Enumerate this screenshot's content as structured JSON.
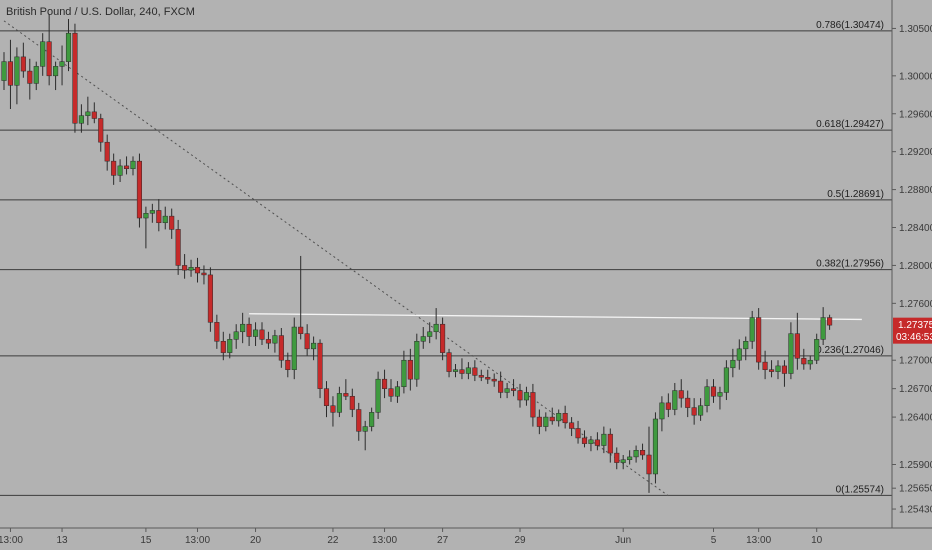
{
  "chart_data": {
    "type": "candlestick",
    "title": "British Pound / U.S. Dollar, 240, FXCM",
    "y_range": [
      1.2523,
      1.308
    ],
    "y_ticks": [
      "1.30500",
      "1.30000",
      "1.29600",
      "1.29200",
      "1.28800",
      "1.28400",
      "1.28000",
      "1.27600",
      "1.27000",
      "1.26700",
      "1.26400",
      "1.25900",
      "1.25650",
      "1.25430"
    ],
    "x_ticks": [
      {
        "label": "13:00",
        "i": 1
      },
      {
        "label": "13",
        "i": 9
      },
      {
        "label": "15",
        "i": 22
      },
      {
        "label": "13:00",
        "i": 30
      },
      {
        "label": "20",
        "i": 39
      },
      {
        "label": "22",
        "i": 51
      },
      {
        "label": "13:00",
        "i": 59
      },
      {
        "label": "27",
        "i": 68
      },
      {
        "label": "29",
        "i": 80
      },
      {
        "label": "Jun",
        "i": 96
      },
      {
        "label": "5",
        "i": 110
      },
      {
        "label": "13:00",
        "i": 117
      },
      {
        "label": "10",
        "i": 126
      }
    ],
    "fib_levels": [
      {
        "label": "0.786(1.30474)",
        "value": 1.30474
      },
      {
        "label": "0.618(1.29427)",
        "value": 1.29427
      },
      {
        "label": "0.5(1.28691)",
        "value": 1.28691
      },
      {
        "label": "0.382(1.27956)",
        "value": 1.27956
      },
      {
        "label": "0.236(1.27046)",
        "value": 1.27046
      },
      {
        "label": "0(1.25574)",
        "value": 1.25574
      }
    ],
    "current_price": {
      "label": "1.27375",
      "countdown": "03:46:53",
      "value": 1.27375
    },
    "trend_line": {
      "from": {
        "i": 0,
        "value": 1.3058
      },
      "to": {
        "i": 103,
        "value": 1.2557
      }
    },
    "resistance_line": {
      "from": {
        "i": 38,
        "value": 1.2749
      },
      "to": {
        "i": 133,
        "value": 1.2743
      }
    },
    "candles": [
      {
        "o": 1.2995,
        "h": 1.3025,
        "l": 1.2985,
        "c": 1.3015
      },
      {
        "o": 1.3015,
        "h": 1.3038,
        "l": 1.2965,
        "c": 1.299
      },
      {
        "o": 1.299,
        "h": 1.303,
        "l": 1.297,
        "c": 1.302
      },
      {
        "o": 1.302,
        "h": 1.3035,
        "l": 1.2998,
        "c": 1.3005
      },
      {
        "o": 1.3005,
        "h": 1.3018,
        "l": 1.2975,
        "c": 1.2992
      },
      {
        "o": 1.2992,
        "h": 1.3015,
        "l": 1.2985,
        "c": 1.301
      },
      {
        "o": 1.301,
        "h": 1.3045,
        "l": 1.3,
        "c": 1.3036
      },
      {
        "o": 1.3036,
        "h": 1.3065,
        "l": 1.299,
        "c": 1.3
      },
      {
        "o": 1.3,
        "h": 1.3015,
        "l": 1.2985,
        "c": 1.301
      },
      {
        "o": 1.301,
        "h": 1.3032,
        "l": 1.299,
        "c": 1.3015
      },
      {
        "o": 1.3015,
        "h": 1.306,
        "l": 1.3005,
        "c": 1.3045
      },
      {
        "o": 1.3045,
        "h": 1.3055,
        "l": 1.294,
        "c": 1.295
      },
      {
        "o": 1.295,
        "h": 1.297,
        "l": 1.294,
        "c": 1.2958
      },
      {
        "o": 1.2958,
        "h": 1.2978,
        "l": 1.2948,
        "c": 1.2962
      },
      {
        "o": 1.2962,
        "h": 1.2972,
        "l": 1.295,
        "c": 1.2955
      },
      {
        "o": 1.2955,
        "h": 1.296,
        "l": 1.292,
        "c": 1.293
      },
      {
        "o": 1.293,
        "h": 1.2938,
        "l": 1.29,
        "c": 1.291
      },
      {
        "o": 1.291,
        "h": 1.2918,
        "l": 1.2885,
        "c": 1.2895
      },
      {
        "o": 1.2895,
        "h": 1.2912,
        "l": 1.2888,
        "c": 1.2905
      },
      {
        "o": 1.2905,
        "h": 1.2915,
        "l": 1.2896,
        "c": 1.2902
      },
      {
        "o": 1.2902,
        "h": 1.2915,
        "l": 1.2895,
        "c": 1.291
      },
      {
        "o": 1.291,
        "h": 1.2918,
        "l": 1.284,
        "c": 1.285
      },
      {
        "o": 1.285,
        "h": 1.2862,
        "l": 1.2818,
        "c": 1.2855
      },
      {
        "o": 1.2855,
        "h": 1.2865,
        "l": 1.2845,
        "c": 1.2858
      },
      {
        "o": 1.2858,
        "h": 1.287,
        "l": 1.2836,
        "c": 1.2845
      },
      {
        "o": 1.2845,
        "h": 1.2862,
        "l": 1.2838,
        "c": 1.2852
      },
      {
        "o": 1.2852,
        "h": 1.286,
        "l": 1.2828,
        "c": 1.2838
      },
      {
        "o": 1.2838,
        "h": 1.2848,
        "l": 1.279,
        "c": 1.28
      },
      {
        "o": 1.28,
        "h": 1.2812,
        "l": 1.2786,
        "c": 1.2795
      },
      {
        "o": 1.2795,
        "h": 1.2806,
        "l": 1.2788,
        "c": 1.2798
      },
      {
        "o": 1.2798,
        "h": 1.2808,
        "l": 1.2782,
        "c": 1.2792
      },
      {
        "o": 1.2792,
        "h": 1.28,
        "l": 1.278,
        "c": 1.279
      },
      {
        "o": 1.279,
        "h": 1.2798,
        "l": 1.273,
        "c": 1.274
      },
      {
        "o": 1.274,
        "h": 1.2748,
        "l": 1.2712,
        "c": 1.272
      },
      {
        "o": 1.272,
        "h": 1.273,
        "l": 1.27,
        "c": 1.2708
      },
      {
        "o": 1.2708,
        "h": 1.2728,
        "l": 1.2702,
        "c": 1.2722
      },
      {
        "o": 1.2722,
        "h": 1.2738,
        "l": 1.2712,
        "c": 1.273
      },
      {
        "o": 1.273,
        "h": 1.275,
        "l": 1.2718,
        "c": 1.2738
      },
      {
        "o": 1.2738,
        "h": 1.2745,
        "l": 1.2715,
        "c": 1.2725
      },
      {
        "o": 1.2725,
        "h": 1.274,
        "l": 1.2715,
        "c": 1.2732
      },
      {
        "o": 1.2732,
        "h": 1.274,
        "l": 1.2716,
        "c": 1.2722
      },
      {
        "o": 1.2722,
        "h": 1.273,
        "l": 1.2712,
        "c": 1.2718
      },
      {
        "o": 1.2718,
        "h": 1.2732,
        "l": 1.2708,
        "c": 1.2726
      },
      {
        "o": 1.2726,
        "h": 1.2734,
        "l": 1.2692,
        "c": 1.27
      },
      {
        "o": 1.27,
        "h": 1.2708,
        "l": 1.2682,
        "c": 1.269
      },
      {
        "o": 1.269,
        "h": 1.2745,
        "l": 1.268,
        "c": 1.2735
      },
      {
        "o": 1.2735,
        "h": 1.281,
        "l": 1.2722,
        "c": 1.2728
      },
      {
        "o": 1.2728,
        "h": 1.2738,
        "l": 1.2705,
        "c": 1.2712
      },
      {
        "o": 1.2712,
        "h": 1.2725,
        "l": 1.27,
        "c": 1.2718
      },
      {
        "o": 1.2718,
        "h": 1.2722,
        "l": 1.266,
        "c": 1.267
      },
      {
        "o": 1.267,
        "h": 1.2678,
        "l": 1.264,
        "c": 1.2652
      },
      {
        "o": 1.2652,
        "h": 1.2662,
        "l": 1.263,
        "c": 1.2645
      },
      {
        "o": 1.2645,
        "h": 1.2672,
        "l": 1.264,
        "c": 1.2665
      },
      {
        "o": 1.2665,
        "h": 1.268,
        "l": 1.2658,
        "c": 1.2662
      },
      {
        "o": 1.2662,
        "h": 1.267,
        "l": 1.264,
        "c": 1.2648
      },
      {
        "o": 1.2648,
        "h": 1.2655,
        "l": 1.2615,
        "c": 1.2625
      },
      {
        "o": 1.2625,
        "h": 1.2636,
        "l": 1.2605,
        "c": 1.263
      },
      {
        "o": 1.263,
        "h": 1.265,
        "l": 1.2625,
        "c": 1.2645
      },
      {
        "o": 1.2645,
        "h": 1.2688,
        "l": 1.2638,
        "c": 1.268
      },
      {
        "o": 1.268,
        "h": 1.269,
        "l": 1.266,
        "c": 1.267
      },
      {
        "o": 1.267,
        "h": 1.268,
        "l": 1.2656,
        "c": 1.2662
      },
      {
        "o": 1.2662,
        "h": 1.2678,
        "l": 1.2655,
        "c": 1.2672
      },
      {
        "o": 1.2672,
        "h": 1.271,
        "l": 1.2665,
        "c": 1.27
      },
      {
        "o": 1.27,
        "h": 1.2712,
        "l": 1.2668,
        "c": 1.268
      },
      {
        "o": 1.268,
        "h": 1.2728,
        "l": 1.2672,
        "c": 1.272
      },
      {
        "o": 1.272,
        "h": 1.2735,
        "l": 1.2712,
        "c": 1.2725
      },
      {
        "o": 1.2725,
        "h": 1.274,
        "l": 1.2718,
        "c": 1.273
      },
      {
        "o": 1.273,
        "h": 1.2755,
        "l": 1.2722,
        "c": 1.2738
      },
      {
        "o": 1.2738,
        "h": 1.2745,
        "l": 1.27,
        "c": 1.2708
      },
      {
        "o": 1.2708,
        "h": 1.2712,
        "l": 1.2682,
        "c": 1.2688
      },
      {
        "o": 1.2688,
        "h": 1.2696,
        "l": 1.2682,
        "c": 1.269
      },
      {
        "o": 1.269,
        "h": 1.2702,
        "l": 1.268,
        "c": 1.2686
      },
      {
        "o": 1.2686,
        "h": 1.2698,
        "l": 1.268,
        "c": 1.2692
      },
      {
        "o": 1.2692,
        "h": 1.27,
        "l": 1.2678,
        "c": 1.2684
      },
      {
        "o": 1.2684,
        "h": 1.269,
        "l": 1.2678,
        "c": 1.2682
      },
      {
        "o": 1.2682,
        "h": 1.269,
        "l": 1.2675,
        "c": 1.268
      },
      {
        "o": 1.268,
        "h": 1.2686,
        "l": 1.2672,
        "c": 1.2678
      },
      {
        "o": 1.2678,
        "h": 1.2688,
        "l": 1.266,
        "c": 1.2666
      },
      {
        "o": 1.2666,
        "h": 1.2676,
        "l": 1.266,
        "c": 1.267
      },
      {
        "o": 1.267,
        "h": 1.268,
        "l": 1.2662,
        "c": 1.2668
      },
      {
        "o": 1.2668,
        "h": 1.2675,
        "l": 1.265,
        "c": 1.2658
      },
      {
        "o": 1.2658,
        "h": 1.2672,
        "l": 1.2652,
        "c": 1.2666
      },
      {
        "o": 1.2666,
        "h": 1.2675,
        "l": 1.263,
        "c": 1.264
      },
      {
        "o": 1.264,
        "h": 1.2648,
        "l": 1.2622,
        "c": 1.263
      },
      {
        "o": 1.263,
        "h": 1.2645,
        "l": 1.2625,
        "c": 1.264
      },
      {
        "o": 1.264,
        "h": 1.265,
        "l": 1.2632,
        "c": 1.2636
      },
      {
        "o": 1.2636,
        "h": 1.2648,
        "l": 1.263,
        "c": 1.2644
      },
      {
        "o": 1.2644,
        "h": 1.2652,
        "l": 1.2628,
        "c": 1.2634
      },
      {
        "o": 1.2634,
        "h": 1.264,
        "l": 1.262,
        "c": 1.2628
      },
      {
        "o": 1.2628,
        "h": 1.2636,
        "l": 1.2612,
        "c": 1.2618
      },
      {
        "o": 1.2618,
        "h": 1.2626,
        "l": 1.2608,
        "c": 1.2612
      },
      {
        "o": 1.2612,
        "h": 1.262,
        "l": 1.2604,
        "c": 1.2616
      },
      {
        "o": 1.2616,
        "h": 1.2624,
        "l": 1.2605,
        "c": 1.261
      },
      {
        "o": 1.261,
        "h": 1.263,
        "l": 1.2602,
        "c": 1.2622
      },
      {
        "o": 1.2622,
        "h": 1.2628,
        "l": 1.2592,
        "c": 1.2602
      },
      {
        "o": 1.2602,
        "h": 1.2608,
        "l": 1.2585,
        "c": 1.2592
      },
      {
        "o": 1.2592,
        "h": 1.26,
        "l": 1.2585,
        "c": 1.2595
      },
      {
        "o": 1.2595,
        "h": 1.2605,
        "l": 1.259,
        "c": 1.2598
      },
      {
        "o": 1.2598,
        "h": 1.261,
        "l": 1.2592,
        "c": 1.2605
      },
      {
        "o": 1.2605,
        "h": 1.2612,
        "l": 1.2595,
        "c": 1.26
      },
      {
        "o": 1.26,
        "h": 1.263,
        "l": 1.256,
        "c": 1.258
      },
      {
        "o": 1.258,
        "h": 1.2645,
        "l": 1.257,
        "c": 1.2638
      },
      {
        "o": 1.2638,
        "h": 1.2662,
        "l": 1.2625,
        "c": 1.2655
      },
      {
        "o": 1.2655,
        "h": 1.2665,
        "l": 1.264,
        "c": 1.2648
      },
      {
        "o": 1.2648,
        "h": 1.2676,
        "l": 1.2642,
        "c": 1.2668
      },
      {
        "o": 1.2668,
        "h": 1.268,
        "l": 1.265,
        "c": 1.266
      },
      {
        "o": 1.266,
        "h": 1.2668,
        "l": 1.264,
        "c": 1.265
      },
      {
        "o": 1.265,
        "h": 1.266,
        "l": 1.2632,
        "c": 1.2642
      },
      {
        "o": 1.2642,
        "h": 1.266,
        "l": 1.2636,
        "c": 1.2652
      },
      {
        "o": 1.2652,
        "h": 1.268,
        "l": 1.2645,
        "c": 1.2672
      },
      {
        "o": 1.2672,
        "h": 1.268,
        "l": 1.2655,
        "c": 1.2662
      },
      {
        "o": 1.2662,
        "h": 1.2672,
        "l": 1.2648,
        "c": 1.2666
      },
      {
        "o": 1.2666,
        "h": 1.27,
        "l": 1.2658,
        "c": 1.2692
      },
      {
        "o": 1.2692,
        "h": 1.2712,
        "l": 1.2682,
        "c": 1.27
      },
      {
        "o": 1.27,
        "h": 1.2722,
        "l": 1.269,
        "c": 1.2712
      },
      {
        "o": 1.2712,
        "h": 1.2725,
        "l": 1.27,
        "c": 1.272
      },
      {
        "o": 1.272,
        "h": 1.2752,
        "l": 1.2712,
        "c": 1.2745
      },
      {
        "o": 1.2745,
        "h": 1.2755,
        "l": 1.269,
        "c": 1.2698
      },
      {
        "o": 1.2698,
        "h": 1.271,
        "l": 1.268,
        "c": 1.269
      },
      {
        "o": 1.269,
        "h": 1.27,
        "l": 1.2682,
        "c": 1.2688
      },
      {
        "o": 1.2688,
        "h": 1.27,
        "l": 1.268,
        "c": 1.2694
      },
      {
        "o": 1.2694,
        "h": 1.27,
        "l": 1.2672,
        "c": 1.2686
      },
      {
        "o": 1.2686,
        "h": 1.274,
        "l": 1.268,
        "c": 1.2728
      },
      {
        "o": 1.2728,
        "h": 1.275,
        "l": 1.269,
        "c": 1.2702
      },
      {
        "o": 1.2702,
        "h": 1.2712,
        "l": 1.269,
        "c": 1.2696
      },
      {
        "o": 1.2696,
        "h": 1.2705,
        "l": 1.269,
        "c": 1.27
      },
      {
        "o": 1.27,
        "h": 1.2728,
        "l": 1.2696,
        "c": 1.2722
      },
      {
        "o": 1.2722,
        "h": 1.2756,
        "l": 1.2716,
        "c": 1.2745
      },
      {
        "o": 1.2745,
        "h": 1.2748,
        "l": 1.2732,
        "c": 1.2737
      }
    ]
  }
}
